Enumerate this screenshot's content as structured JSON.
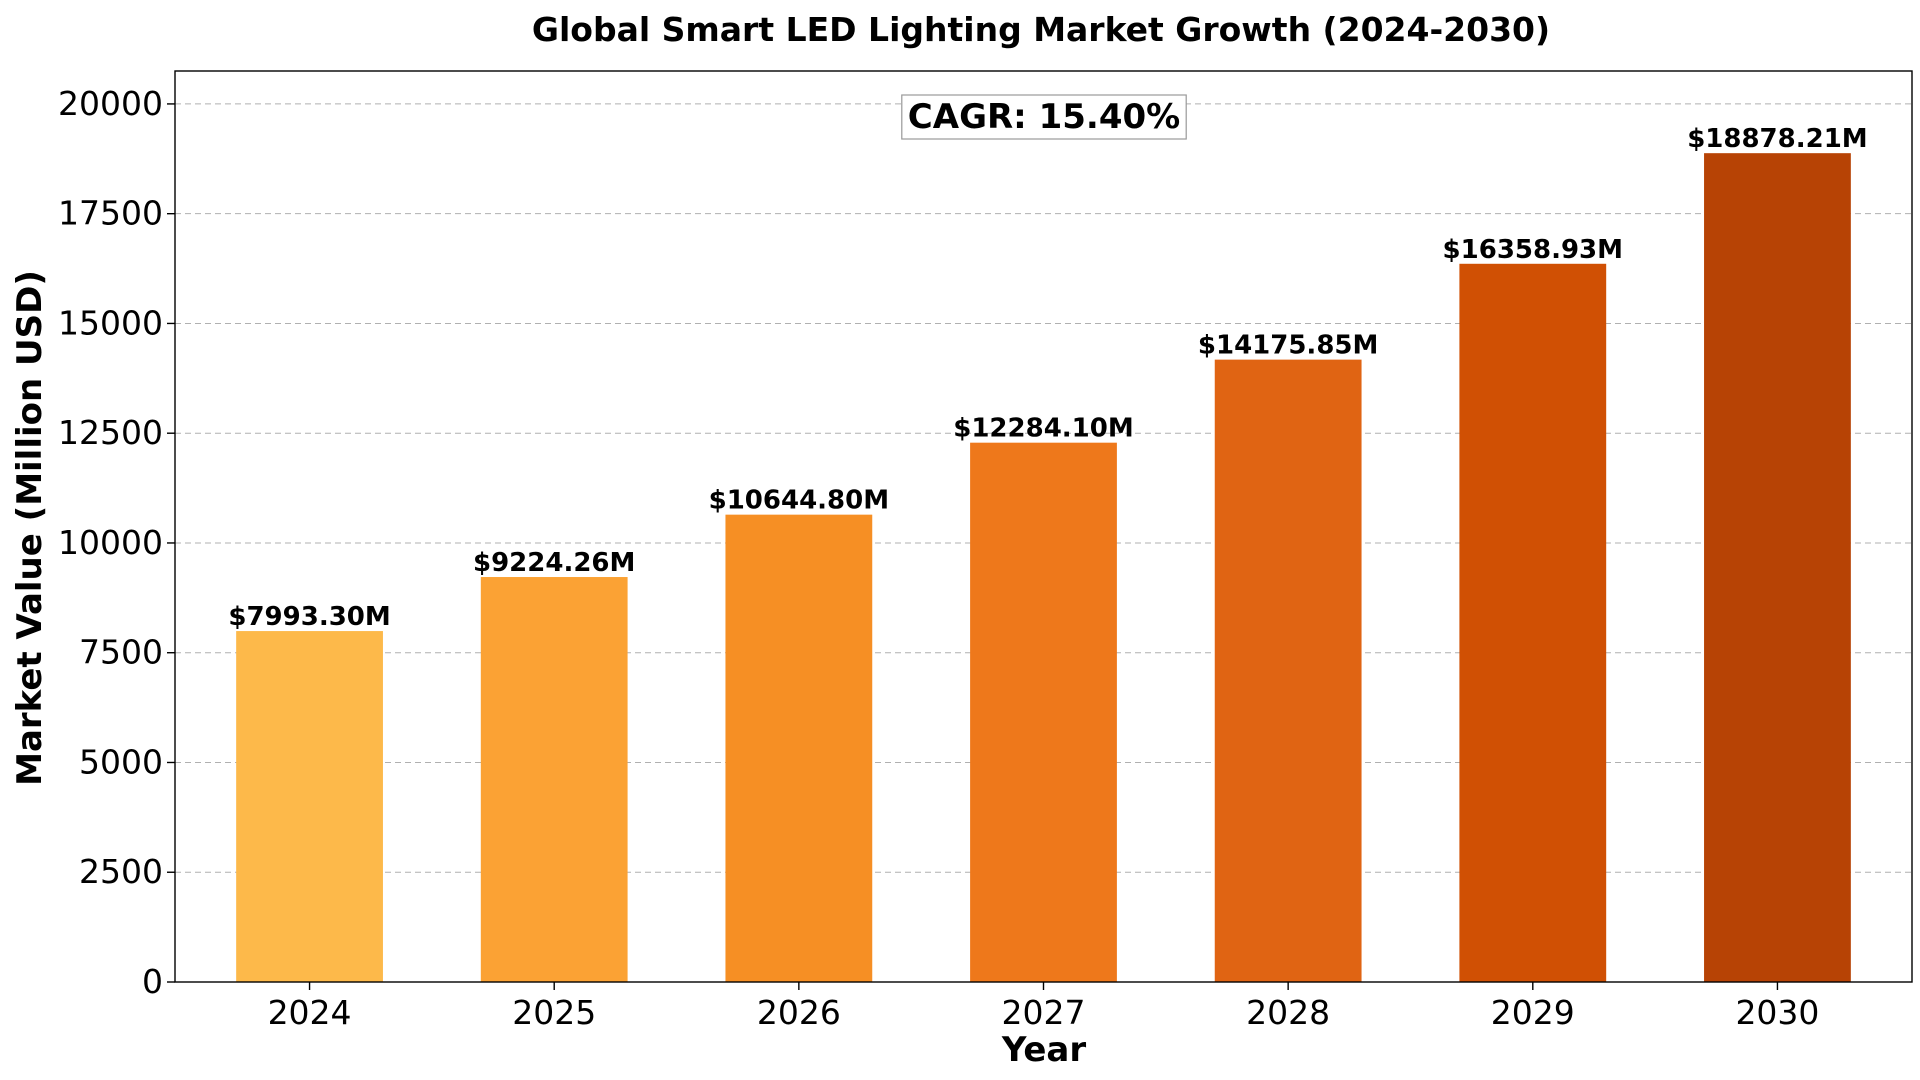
{
  "chart_data": {
    "type": "bar",
    "title": "Global Smart LED Lighting Market Growth (2024-2030)",
    "xlabel": "Year",
    "ylabel": "Market Value (Million USD)",
    "categories": [
      "2024",
      "2025",
      "2026",
      "2027",
      "2028",
      "2029",
      "2030"
    ],
    "values": [
      7993.3,
      9224.26,
      10644.8,
      12284.1,
      14175.85,
      16358.93,
      18878.21
    ],
    "data_labels": [
      "$7993.30M",
      "$9224.26M",
      "$10644.80M",
      "$12284.10M",
      "$14175.85M",
      "$16358.93M",
      "$18878.21M"
    ],
    "colors": [
      "#FDB94A",
      "#FBA234",
      "#F68F24",
      "#EE781B",
      "#E06413",
      "#D05004",
      "#B74305"
    ],
    "ylim": [
      0,
      20750
    ],
    "yticks": [
      0,
      2500,
      5000,
      7500,
      10000,
      12500,
      15000,
      17500,
      20000
    ],
    "grid": "y-dashed",
    "annotation": "CAGR: 15.40%"
  }
}
